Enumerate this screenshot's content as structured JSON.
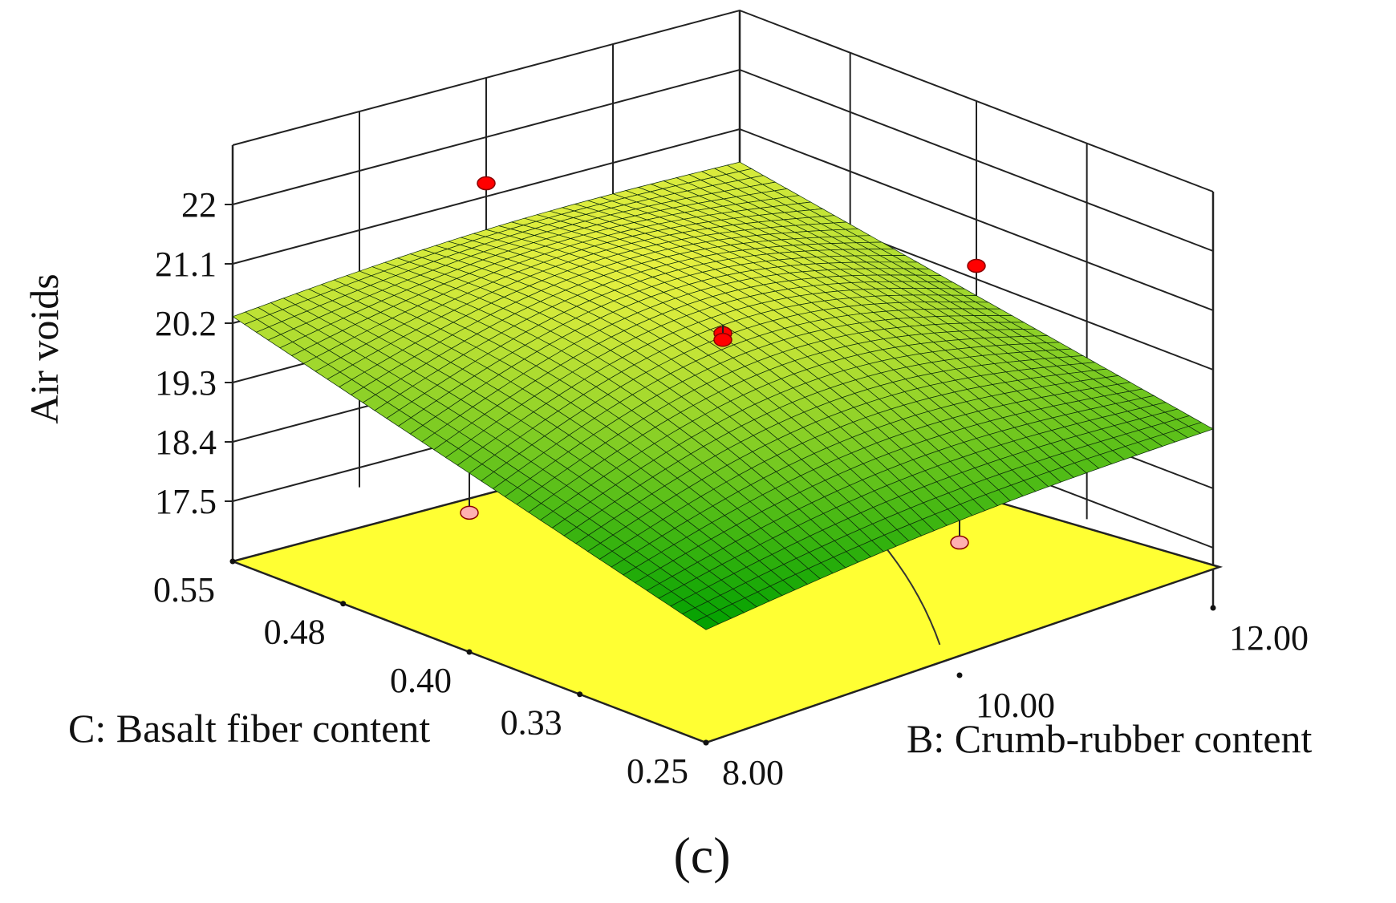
{
  "chart_data": {
    "type": "surface3d",
    "panel_label": "(c)",
    "z_axis": {
      "label": "Air voids",
      "range": [
        17.5,
        22
      ],
      "ticks": [
        "22",
        "21.1",
        "20.2",
        "19.3",
        "18.4",
        "17.5"
      ]
    },
    "b_axis": {
      "label": "B: Crumb-rubber content",
      "range": [
        8,
        12
      ],
      "ticks": [
        "8.00",
        "10.00",
        "12.00"
      ]
    },
    "c_axis": {
      "label": "C: Basalt fiber content",
      "range": [
        0.25,
        0.55
      ],
      "ticks": [
        "0.25",
        "0.33",
        "0.40",
        "0.48",
        "0.55"
      ]
    },
    "surface_corners": [
      {
        "b": 8.0,
        "c": 0.55,
        "z": 20.3
      },
      {
        "b": 8.0,
        "c": 0.25,
        "z": 18.3
      },
      {
        "b": 12.0,
        "c": 0.55,
        "z": 20.6
      },
      {
        "b": 12.0,
        "c": 0.25,
        "z": 19.3
      }
    ],
    "design_points": [
      {
        "b": 10.0,
        "c": 0.4,
        "z": 20.4,
        "above_surface": true
      },
      {
        "b": 10.0,
        "c": 0.4,
        "z": 20.3,
        "above_surface": true
      },
      {
        "b": 10.0,
        "c": 0.55,
        "z": 21.3,
        "above_surface": true
      },
      {
        "b": 12.0,
        "c": 0.4,
        "z": 20.4,
        "above_surface": true
      },
      {
        "b": 8.0,
        "c": 0.4,
        "z": 18.7,
        "above_surface": false
      },
      {
        "b": 10.0,
        "c": 0.25,
        "z": 18.6,
        "above_surface": false
      }
    ],
    "colors": {
      "surface_low": "#00a000",
      "surface_high": "#e6f040",
      "floor": "#ffff33",
      "point_above": "#ff0000",
      "point_below": "#ffb0b0",
      "grid": "#222222"
    }
  }
}
